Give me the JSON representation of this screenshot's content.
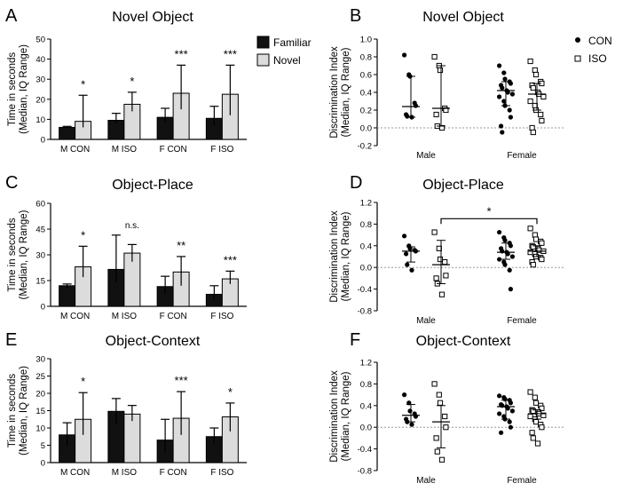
{
  "figure": {
    "legend_bar": {
      "familiar": "Familiar",
      "novel": "Novel"
    },
    "legend_dot": {
      "con": "CON",
      "iso": "ISO"
    }
  },
  "chart_data": [
    {
      "id": "A",
      "type": "bar",
      "title": "Novel Object",
      "ylabel": "Time in seconds",
      "ylabel2": "(Median, IQ Range)",
      "xlabel": "",
      "ylim": [
        0,
        50
      ],
      "yticks": [
        0,
        10,
        20,
        30,
        40,
        50
      ],
      "categories": [
        "M CON",
        "M ISO",
        "F CON",
        "F ISO"
      ],
      "series": [
        {
          "name": "Familiar",
          "values": [
            6,
            9.5,
            11,
            10.5
          ],
          "err_low": [
            5.5,
            8,
            8.5,
            7
          ],
          "err_high": [
            6.5,
            13,
            15.5,
            16.5
          ]
        },
        {
          "name": "Novel",
          "values": [
            9,
            17.5,
            23,
            22.5
          ],
          "err_low": [
            6,
            14,
            15,
            12
          ],
          "err_high": [
            22,
            23.5,
            37,
            37
          ]
        }
      ],
      "significance": [
        "*",
        "*",
        "***",
        "***"
      ]
    },
    {
      "id": "B",
      "type": "scatter",
      "title": "Novel Object",
      "ylabel": "Discrimination Index",
      "ylabel2": "(Median, IQ Range)",
      "ylim": [
        -0.2,
        1.0
      ],
      "yticks": [
        "-0.2",
        "0.0",
        "0.2",
        "0.4",
        "0.6",
        "0.8",
        "1.0"
      ],
      "groups": [
        "Male",
        "Female"
      ],
      "series": [
        {
          "name": "CON",
          "group": "Male",
          "median": 0.24,
          "q1": 0.12,
          "q3": 0.58,
          "points": [
            0.82,
            0.6,
            0.58,
            0.28,
            0.25,
            0.15,
            0.13,
            0.12
          ]
        },
        {
          "name": "ISO",
          "group": "Male",
          "median": 0.22,
          "q1": 0.02,
          "q3": 0.7,
          "points": [
            0.8,
            0.7,
            0.65,
            0.22,
            0.2,
            0.15,
            0.02,
            0.0
          ]
        },
        {
          "name": "CON",
          "group": "Female",
          "median": 0.42,
          "q1": 0.25,
          "q3": 0.52,
          "points": [
            0.7,
            0.62,
            0.55,
            0.52,
            0.5,
            0.48,
            0.45,
            0.42,
            0.4,
            0.38,
            0.35,
            0.3,
            0.25,
            0.2,
            0.12,
            0.02,
            -0.05
          ]
        },
        {
          "name": "ISO",
          "group": "Female",
          "median": 0.38,
          "q1": 0.2,
          "q3": 0.5,
          "points": [
            0.75,
            0.65,
            0.6,
            0.52,
            0.5,
            0.48,
            0.45,
            0.4,
            0.38,
            0.35,
            0.3,
            0.25,
            0.2,
            0.15,
            0.08,
            0.0,
            -0.05
          ]
        }
      ]
    },
    {
      "id": "C",
      "type": "bar",
      "title": "Object-Place",
      "ylabel": "Time in seconds",
      "ylabel2": "(Median, IQ Range)",
      "xlabel": "",
      "ylim": [
        0,
        60
      ],
      "yticks": [
        0,
        15,
        30,
        45,
        60
      ],
      "categories": [
        "M CON",
        "M ISO",
        "F CON",
        "F ISO"
      ],
      "series": [
        {
          "name": "Familiar",
          "values": [
            12,
            21.5,
            11.5,
            7
          ],
          "err_low": [
            10.5,
            14,
            7,
            4
          ],
          "err_high": [
            13,
            41.5,
            17.5,
            12
          ]
        },
        {
          "name": "Novel",
          "values": [
            23,
            31,
            20,
            16
          ],
          "err_low": [
            17,
            26,
            12,
            13
          ],
          "err_high": [
            35,
            36,
            29,
            20.5
          ]
        }
      ],
      "significance": [
        "*",
        "n.s.",
        "**",
        "***"
      ]
    },
    {
      "id": "D",
      "type": "scatter",
      "title": "Object-Place",
      "ylabel": "Discrimination Index",
      "ylabel2": "(Median, IQ Range)",
      "ylim": [
        -0.8,
        1.2
      ],
      "yticks": [
        "-0.8",
        "-0.4",
        "0.0",
        "0.4",
        "0.8",
        "1.2"
      ],
      "groups": [
        "Male",
        "Female"
      ],
      "bracket": {
        "from_series": 1,
        "to_series": 3,
        "label": "*"
      },
      "series": [
        {
          "name": "CON",
          "group": "Male",
          "median": 0.3,
          "q1": 0.1,
          "q3": 0.38,
          "points": [
            0.58,
            0.4,
            0.35,
            0.32,
            0.3,
            0.25,
            0.05,
            -0.05
          ]
        },
        {
          "name": "ISO",
          "group": "Male",
          "median": 0.05,
          "q1": -0.3,
          "q3": 0.5,
          "points": [
            0.65,
            0.35,
            0.15,
            0.1,
            -0.15,
            -0.2,
            -0.3,
            -0.5
          ]
        },
        {
          "name": "CON",
          "group": "Female",
          "median": 0.28,
          "q1": 0.15,
          "q3": 0.45,
          "points": [
            0.65,
            0.55,
            0.5,
            0.45,
            0.4,
            0.35,
            0.3,
            0.28,
            0.25,
            0.2,
            0.15,
            0.1,
            0.05,
            -0.05,
            -0.4
          ]
        },
        {
          "name": "ISO",
          "group": "Female",
          "median": 0.3,
          "q1": 0.2,
          "q3": 0.4,
          "points": [
            0.72,
            0.6,
            0.52,
            0.48,
            0.45,
            0.4,
            0.38,
            0.35,
            0.32,
            0.3,
            0.28,
            0.25,
            0.2,
            0.18,
            0.15,
            0.1,
            0.05
          ]
        }
      ]
    },
    {
      "id": "E",
      "type": "bar",
      "title": "Object-Context",
      "ylabel": "Time in seconds",
      "ylabel2": "(Median, IQ Range)",
      "xlabel": "",
      "ylim": [
        0,
        30
      ],
      "yticks": [
        0,
        5,
        10,
        15,
        20,
        25,
        30
      ],
      "categories": [
        "M CON",
        "M ISO",
        "F CON",
        "F ISO"
      ],
      "series": [
        {
          "name": "Familiar",
          "values": [
            8,
            14.8,
            6.5,
            7.5
          ],
          "err_low": [
            5,
            11,
            3,
            5.5
          ],
          "err_high": [
            11.5,
            18.5,
            12.5,
            10
          ]
        },
        {
          "name": "Novel",
          "values": [
            12.5,
            14,
            12.8,
            13.2
          ],
          "err_low": [
            8,
            12,
            8,
            9
          ],
          "err_high": [
            20.2,
            16.5,
            20.5,
            17.2
          ]
        }
      ],
      "significance": [
        "*",
        "",
        "***",
        "*"
      ]
    },
    {
      "id": "F",
      "type": "scatter",
      "title": "Object-Context",
      "ylabel": "Discrimination Index",
      "ylabel2": "(Median, IQ Range)",
      "ylim": [
        -0.8,
        1.2
      ],
      "yticks": [
        "-0.8",
        "-0.4",
        "0.0",
        "0.4",
        "0.8",
        "1.2"
      ],
      "groups": [
        "Male",
        "Female"
      ],
      "series": [
        {
          "name": "CON",
          "group": "Male",
          "median": 0.22,
          "q1": 0.1,
          "q3": 0.42,
          "points": [
            0.6,
            0.45,
            0.3,
            0.25,
            0.2,
            0.15,
            0.1,
            0.05
          ]
        },
        {
          "name": "ISO",
          "group": "Male",
          "median": 0.1,
          "q1": -0.38,
          "q3": 0.4,
          "points": [
            0.8,
            0.6,
            0.45,
            0.2,
            0.0,
            -0.2,
            -0.45,
            -0.6
          ]
        },
        {
          "name": "CON",
          "group": "Female",
          "median": 0.38,
          "q1": 0.15,
          "q3": 0.5,
          "points": [
            0.58,
            0.55,
            0.52,
            0.5,
            0.45,
            0.42,
            0.4,
            0.38,
            0.35,
            0.3,
            0.25,
            0.2,
            0.15,
            0.1,
            0.0,
            -0.1
          ]
        },
        {
          "name": "ISO",
          "group": "Female",
          "median": 0.25,
          "q1": 0.15,
          "q3": 0.32,
          "points": [
            0.65,
            0.55,
            0.45,
            0.4,
            0.35,
            0.32,
            0.3,
            0.28,
            0.25,
            0.22,
            0.2,
            0.15,
            0.1,
            0.05,
            0.0,
            -0.1,
            -0.2,
            -0.3
          ]
        }
      ]
    }
  ]
}
